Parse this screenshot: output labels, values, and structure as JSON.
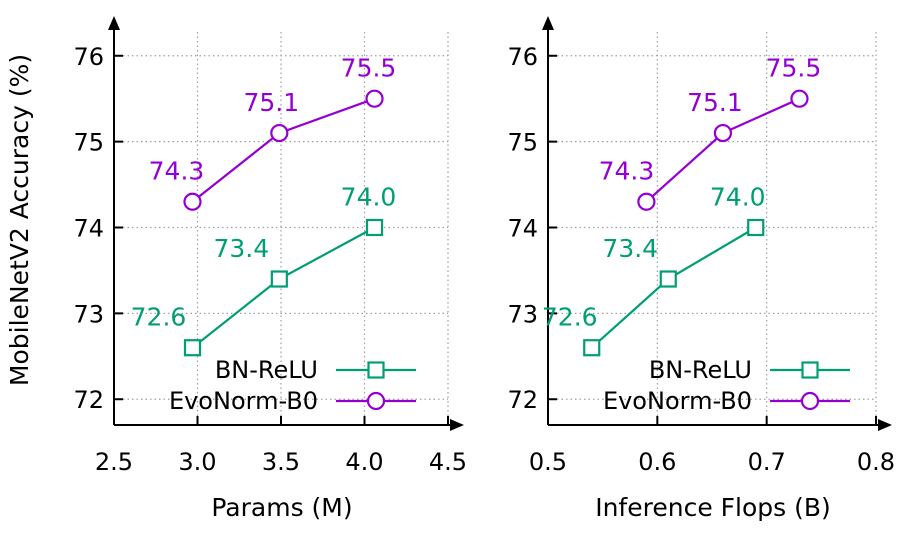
{
  "ylabel": "MobileNetV2 Accuracy (%)",
  "colors": {
    "bn_relu": "#009e73",
    "evonorm": "#9400d3",
    "axis": "#000000",
    "grid": "#a0a0a0"
  },
  "chart_data": [
    {
      "type": "line",
      "xlabel": "Params (M)",
      "ylabel": "MobileNetV2 Accuracy (%)",
      "xlim": [
        2.5,
        4.5
      ],
      "ylim": [
        71.7,
        76.3
      ],
      "x_ticks": [
        "2.5",
        "3.0",
        "3.5",
        "4.0",
        "4.5"
      ],
      "x_tick_values": [
        2.5,
        3.0,
        3.5,
        4.0,
        4.5
      ],
      "y_ticks": [
        "72",
        "73",
        "74",
        "75",
        "76"
      ],
      "y_tick_values": [
        72,
        73,
        74,
        75,
        76
      ],
      "grid": true,
      "legend": "bottom-right",
      "series": [
        {
          "name": "BN-ReLU",
          "marker": "square",
          "color": "#009e73",
          "x": [
            2.97,
            3.49,
            4.06
          ],
          "y": [
            72.6,
            73.4,
            74.0
          ],
          "labels": [
            "72.6",
            "73.4",
            "74.0"
          ]
        },
        {
          "name": "EvoNorm-B0",
          "marker": "circle",
          "color": "#9400d3",
          "x": [
            2.97,
            3.49,
            4.06
          ],
          "y": [
            74.3,
            75.1,
            75.5
          ],
          "labels": [
            "74.3",
            "75.1",
            "75.5"
          ]
        }
      ]
    },
    {
      "type": "line",
      "xlabel": "Inference Flops (B)",
      "ylabel": "",
      "xlim": [
        0.5,
        0.8
      ],
      "ylim": [
        71.7,
        76.3
      ],
      "x_ticks": [
        "0.5",
        "0.6",
        "0.7",
        "0.8"
      ],
      "x_tick_values": [
        0.5,
        0.6,
        0.7,
        0.8
      ],
      "y_ticks": [
        "72",
        "73",
        "74",
        "75",
        "76"
      ],
      "y_tick_values": [
        72,
        73,
        74,
        75,
        76
      ],
      "grid": true,
      "legend": "bottom-right",
      "series": [
        {
          "name": "BN-ReLU",
          "marker": "square",
          "color": "#009e73",
          "x": [
            0.54,
            0.61,
            0.69
          ],
          "y": [
            72.6,
            73.4,
            74.0
          ],
          "labels": [
            "72.6",
            "73.4",
            "74.0"
          ]
        },
        {
          "name": "EvoNorm-B0",
          "marker": "circle",
          "color": "#9400d3",
          "x": [
            0.59,
            0.66,
            0.73
          ],
          "y": [
            74.3,
            75.1,
            75.5
          ],
          "labels": [
            "74.3",
            "75.1",
            "75.5"
          ]
        }
      ]
    }
  ]
}
